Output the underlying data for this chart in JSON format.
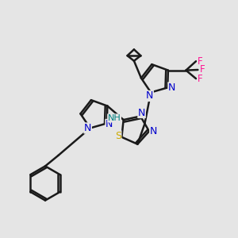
{
  "background_color": "#e5e5e5",
  "bond_color": "#1a1a1a",
  "N_color": "#0000cc",
  "S_color": "#ccaa00",
  "F_color": "#ff1493",
  "H_color": "#008080",
  "line_width": 1.8,
  "font_size": 9,
  "xlim": [
    0,
    10
  ],
  "ylim": [
    0,
    10
  ]
}
